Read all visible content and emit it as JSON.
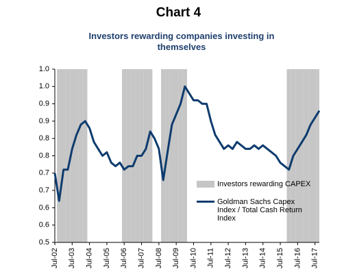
{
  "chart_data": {
    "type": "bar-line",
    "title": "Chart 4",
    "subtitle": "Investors rewarding companies investing in themselves",
    "categories": [
      "Jul-02",
      null,
      null,
      null,
      "Jul-03",
      null,
      null,
      null,
      "Jul-04",
      null,
      null,
      null,
      "Jul-05",
      null,
      null,
      null,
      "Jul-06",
      null,
      null,
      null,
      "Jul-07",
      null,
      null,
      null,
      "Jul-08",
      null,
      null,
      null,
      "Jul-09",
      null,
      null,
      null,
      "Jul-10",
      null,
      null,
      null,
      "Jul-11",
      null,
      null,
      null,
      "Jul-12",
      null,
      null,
      null,
      "Jul-13",
      null,
      null,
      null,
      "Jul-14",
      null,
      null,
      null,
      "Jul-15",
      null,
      null,
      null,
      "Jul-16",
      null,
      null,
      null,
      "Jul-17",
      null
    ],
    "series": [
      {
        "name": "Investors rewarding CAPEX",
        "type": "bar",
        "color": "#c6c6c6",
        "values": [
          null,
          1,
          1,
          1,
          1,
          1,
          1,
          1,
          null,
          null,
          null,
          null,
          null,
          null,
          null,
          null,
          1,
          1,
          1,
          1,
          1,
          1,
          1,
          null,
          null,
          1,
          1,
          1,
          1,
          1,
          1,
          null,
          null,
          null,
          null,
          null,
          null,
          null,
          null,
          null,
          null,
          null,
          null,
          null,
          null,
          null,
          null,
          null,
          null,
          null,
          null,
          null,
          null,
          null,
          1,
          1,
          1,
          1,
          1,
          1,
          1,
          1
        ]
      },
      {
        "name": "Goldman Sachs Capex Index / Total Cash Return Index",
        "type": "line",
        "color": "#0d3b6e",
        "values": [
          0.7,
          0.62,
          0.71,
          0.71,
          0.77,
          0.81,
          0.84,
          0.85,
          0.83,
          0.79,
          0.77,
          0.75,
          0.76,
          0.73,
          0.72,
          0.73,
          0.71,
          0.72,
          0.72,
          0.75,
          0.75,
          0.77,
          0.82,
          0.8,
          0.77,
          0.68,
          0.76,
          0.84,
          0.87,
          0.9,
          0.95,
          0.93,
          0.91,
          0.91,
          0.9,
          0.9,
          0.85,
          0.81,
          0.79,
          0.77,
          0.78,
          0.77,
          0.79,
          0.78,
          0.77,
          0.77,
          0.78,
          0.77,
          0.78,
          0.77,
          0.76,
          0.75,
          0.73,
          0.72,
          0.71,
          0.75,
          0.77,
          0.79,
          0.81,
          0.84,
          0.86,
          0.88
        ]
      }
    ],
    "ylim": [
      0.5,
      1.0
    ],
    "yticks": [
      0.5,
      {
        "value": 0.55,
        "label": "0.6"
      },
      0.6,
      {
        "value": 0.65,
        "label": "0.7"
      },
      0.7,
      {
        "value": 0.75,
        "label": "0.8"
      },
      0.8,
      {
        "value": 0.85,
        "label": "0.9"
      },
      0.9,
      {
        "value": 0.95,
        "label": "1.0"
      },
      {
        "value": 1.0,
        "label": "1.0"
      }
    ],
    "grid": false
  }
}
